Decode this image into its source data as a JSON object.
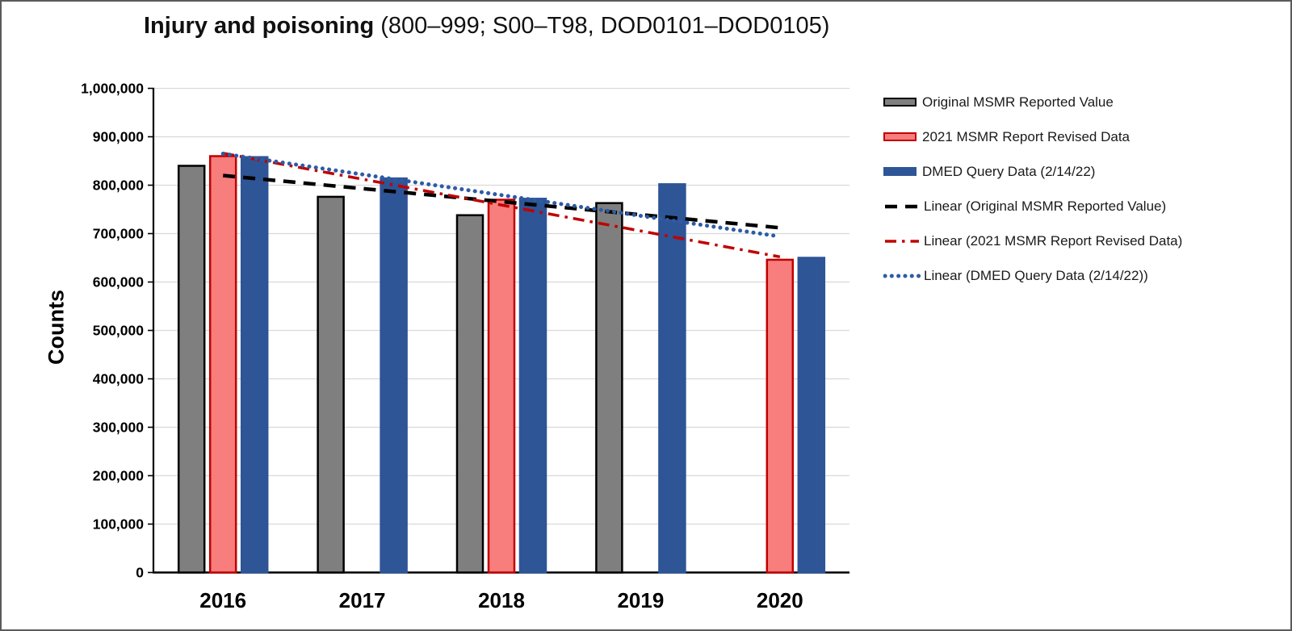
{
  "title": {
    "bold": "Injury and poisoning",
    "regular": " (800–999; S00–T98, DOD0101–DOD0105)"
  },
  "y_axis": {
    "label": "Counts",
    "ticks": [
      "0",
      "100,000",
      "200,000",
      "300,000",
      "400,000",
      "500,000",
      "600,000",
      "700,000",
      "800,000",
      "900,000",
      "1,000,000"
    ]
  },
  "x_axis": {
    "categories": [
      "2016",
      "2017",
      "2018",
      "2019",
      "2020"
    ]
  },
  "legend": [
    {
      "label": "Original MSMR Reported Value",
      "marker": "bar",
      "fill": "#7F7F7F",
      "stroke": "#000000"
    },
    {
      "label": "2021 MSMR Report Revised Data",
      "marker": "bar",
      "fill": "#F87D7D",
      "stroke": "#C00000"
    },
    {
      "label": "DMED Query Data (2/14/22)",
      "marker": "bar",
      "fill": "#2E5596",
      "stroke": "#2E5596"
    },
    {
      "label": "Linear (Original MSMR Reported Value)",
      "marker": "dash",
      "color": "#000000"
    },
    {
      "label": "Linear (2021 MSMR Report Revised Data)",
      "marker": "dashdot",
      "color": "#C00000"
    },
    {
      "label": "Linear (DMED Query Data (2/14/22))",
      "marker": "dot",
      "color": "#2E5BA5"
    }
  ],
  "chart_data": {
    "type": "bar",
    "title": "Injury and poisoning (800–999; S00–T98, DOD0101–DOD0105)",
    "xlabel": "",
    "ylabel": "Counts",
    "ylim": [
      0,
      1000000
    ],
    "grid": true,
    "legend_position": "right",
    "categories": [
      "2016",
      "2017",
      "2018",
      "2019",
      "2020"
    ],
    "series": [
      {
        "name": "Original MSMR Reported Value",
        "fill": "#7F7F7F",
        "stroke": "#000000",
        "values": [
          840000,
          776000,
          738000,
          763000,
          null
        ]
      },
      {
        "name": "2021 MSMR Report Revised Data",
        "fill": "#F87D7D",
        "stroke": "#C00000",
        "values": [
          860000,
          null,
          770000,
          null,
          646000
        ]
      },
      {
        "name": "DMED Query Data (2/14/22)",
        "fill": "#2E5596",
        "stroke": "#2E5596",
        "values": [
          858000,
          814000,
          772000,
          802000,
          650000
        ]
      }
    ],
    "trendlines": [
      {
        "name": "Linear (Original MSMR Reported Value)",
        "style": "dash",
        "color": "#000000",
        "start": 820000,
        "end": 712000
      },
      {
        "name": "Linear (2021 MSMR Report Revised Data)",
        "style": "dashdot",
        "color": "#C00000",
        "start": 866000,
        "end": 652000
      },
      {
        "name": "Linear (DMED Query Data (2/14/22))",
        "style": "dot",
        "color": "#2E5BA5",
        "start": 865000,
        "end": 694000
      }
    ]
  }
}
